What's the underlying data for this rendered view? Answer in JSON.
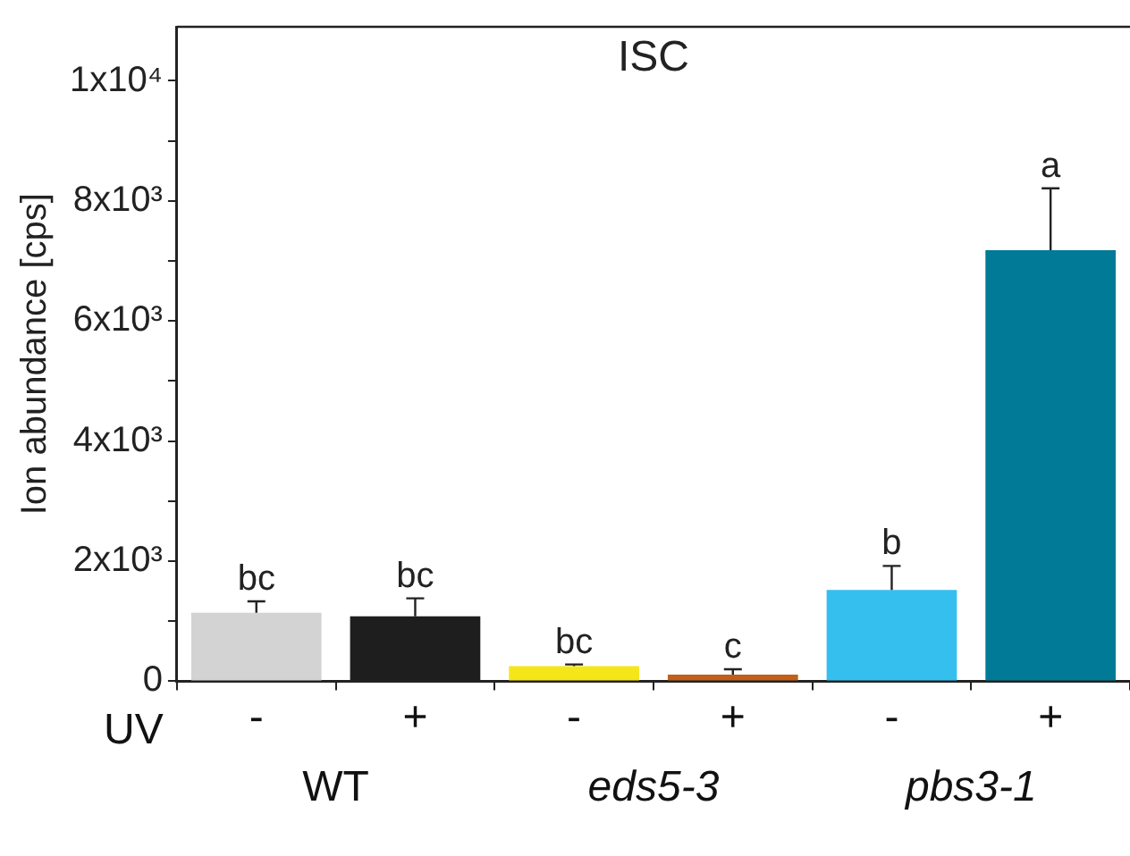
{
  "chart_data": {
    "type": "bar",
    "title": "ISC",
    "ylabel": "Ion abundance [cps]",
    "xlabel": "UV",
    "categories": [
      "-",
      "+",
      "-",
      "+",
      "-",
      "+"
    ],
    "annotations": [
      "WT",
      "eds5-3",
      "pbs3-1"
    ],
    "values": [
      1140,
      1080,
      250,
      110,
      1520,
      7180
    ],
    "errors": [
      190,
      300,
      30,
      90,
      400,
      1030
    ],
    "colors": [
      "#d3d3d3",
      "#1e1e1e",
      "#f5e61a",
      "#c0601a",
      "#35bfee",
      "#007a96"
    ],
    "value_labels": [
      "bc",
      "bc",
      "bc",
      "c",
      "b",
      "a"
    ],
    "ylim": [
      0,
      10900
    ],
    "yticks": [
      {
        "value": 0,
        "label": "0"
      },
      {
        "value": 1000,
        "label": null
      },
      {
        "value": 2000,
        "label": "2x10³"
      },
      {
        "value": 3000,
        "label": null
      },
      {
        "value": 4000,
        "label": "4x10³"
      },
      {
        "value": 5000,
        "label": null
      },
      {
        "value": 6000,
        "label": "6x10³"
      },
      {
        "value": 7000,
        "label": null
      },
      {
        "value": 8000,
        "label": "8x10³"
      },
      {
        "value": 9000,
        "label": null
      },
      {
        "value": 10000,
        "label": "1x10⁴"
      }
    ],
    "grid": false,
    "legend": false
  }
}
